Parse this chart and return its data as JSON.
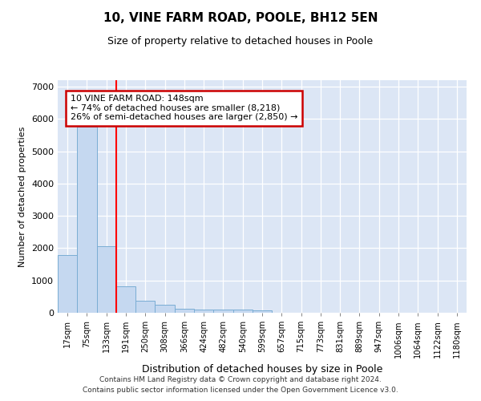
{
  "title": "10, VINE FARM ROAD, POOLE, BH12 5EN",
  "subtitle": "Size of property relative to detached houses in Poole",
  "xlabel": "Distribution of detached houses by size in Poole",
  "ylabel": "Number of detached properties",
  "bar_labels": [
    "17sqm",
    "75sqm",
    "133sqm",
    "191sqm",
    "250sqm",
    "308sqm",
    "366sqm",
    "424sqm",
    "482sqm",
    "540sqm",
    "599sqm",
    "657sqm",
    "715sqm",
    "773sqm",
    "831sqm",
    "889sqm",
    "947sqm",
    "1006sqm",
    "1064sqm",
    "1122sqm",
    "1180sqm"
  ],
  "bar_values": [
    1800,
    5750,
    2050,
    830,
    370,
    240,
    120,
    110,
    100,
    90,
    70,
    0,
    0,
    0,
    0,
    0,
    0,
    0,
    0,
    0,
    0
  ],
  "bar_color": "#c5d8f0",
  "bar_edge_color": "#7aadd4",
  "red_line_x": 2.5,
  "annotation_title": "10 VINE FARM ROAD: 148sqm",
  "annotation_line1": "← 74% of detached houses are smaller (8,218)",
  "annotation_line2": "26% of semi-detached houses are larger (2,850) →",
  "annotation_box_facecolor": "#ffffff",
  "annotation_box_edgecolor": "#cc0000",
  "ylim": [
    0,
    7200
  ],
  "yticks": [
    0,
    1000,
    2000,
    3000,
    4000,
    5000,
    6000,
    7000
  ],
  "footer1": "Contains HM Land Registry data © Crown copyright and database right 2024.",
  "footer2": "Contains public sector information licensed under the Open Government Licence v3.0.",
  "fig_bg_color": "#ffffff",
  "plot_bg_color": "#dce6f5",
  "grid_color": "#ffffff",
  "title_fontsize": 11,
  "subtitle_fontsize": 9,
  "ylabel_fontsize": 8,
  "xlabel_fontsize": 9
}
